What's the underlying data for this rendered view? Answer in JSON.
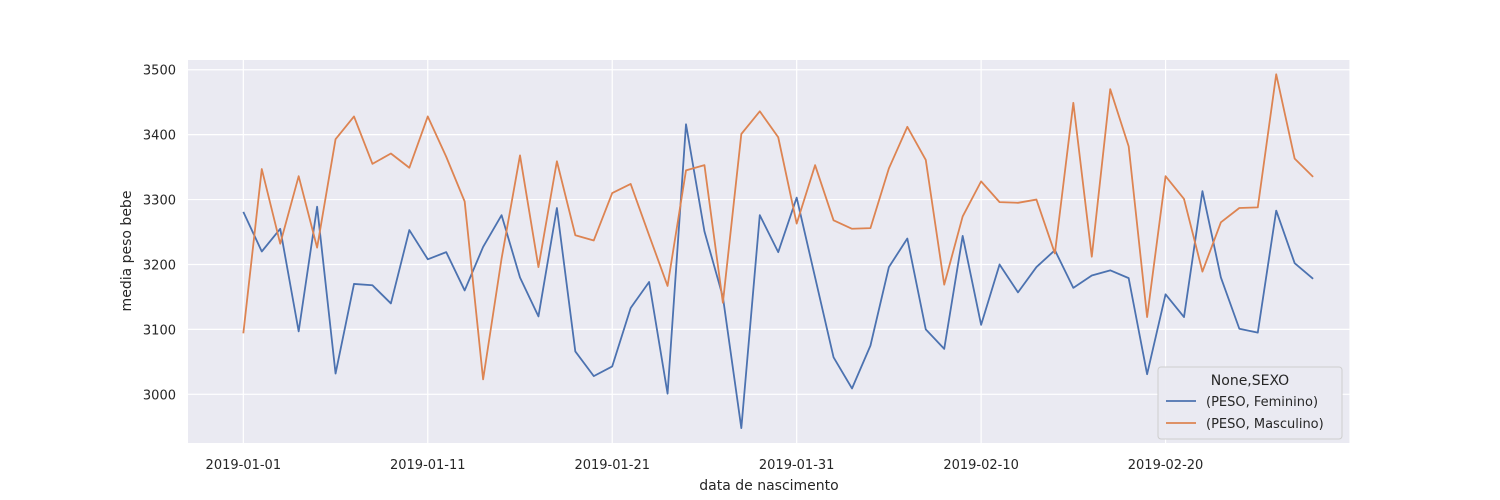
{
  "chart_data": {
    "type": "line",
    "xlabel": "data de nascimento",
    "ylabel": "media peso bebe",
    "x_start": "2019-01-01",
    "x_end": "2019-02-28",
    "xlim": [
      "2018-12-29",
      "2019-03-02"
    ],
    "ylim": [
      2925,
      3515
    ],
    "x_ticks": [
      "2019-01-01",
      "2019-01-11",
      "2019-01-21",
      "2019-01-31",
      "2019-02-10",
      "2019-02-20"
    ],
    "y_ticks": [
      3000,
      3100,
      3200,
      3300,
      3400,
      3500
    ],
    "grid": true,
    "legend": {
      "title": "None,SEXO",
      "placement": "lower-right"
    },
    "series": [
      {
        "name": "(PESO, Feminino)",
        "color": "#4c72b0",
        "values": [
          3281,
          3220,
          3255,
          3097,
          3289,
          3032,
          3170,
          3168,
          3140,
          3253,
          3208,
          3219,
          3160,
          3227,
          3276,
          3180,
          3120,
          3287,
          3066,
          3028,
          3043,
          3133,
          3173,
          3001,
          3416,
          3251,
          3150,
          2948,
          3276,
          3219,
          3303,
          3180,
          3057,
          3009,
          3075,
          3196,
          3240,
          3100,
          3070,
          3244,
          3107,
          3200,
          3157,
          3196,
          3222,
          3164,
          3183,
          3191,
          3179,
          3031,
          3154,
          3119,
          3313,
          3180,
          3101,
          3095,
          3283,
          3202,
          3178
        ]
      },
      {
        "name": "(PESO, Masculino)",
        "color": "#dd8452",
        "values": [
          3094,
          3347,
          3232,
          3336,
          3226,
          3393,
          3428,
          3355,
          3371,
          3349,
          3428,
          3366,
          3297,
          3023,
          3209,
          3368,
          3196,
          3359,
          3245,
          3237,
          3310,
          3324,
          3245,
          3167,
          3345,
          3353,
          3141,
          3401,
          3436,
          3396,
          3263,
          3353,
          3268,
          3255,
          3256,
          3348,
          3412,
          3361,
          3169,
          3274,
          3328,
          3296,
          3295,
          3300,
          3217,
          3449,
          3212,
          3470,
          3382,
          3119,
          3336,
          3301,
          3189,
          3265,
          3287,
          3288,
          3493,
          3363,
          3335
        ]
      }
    ]
  }
}
